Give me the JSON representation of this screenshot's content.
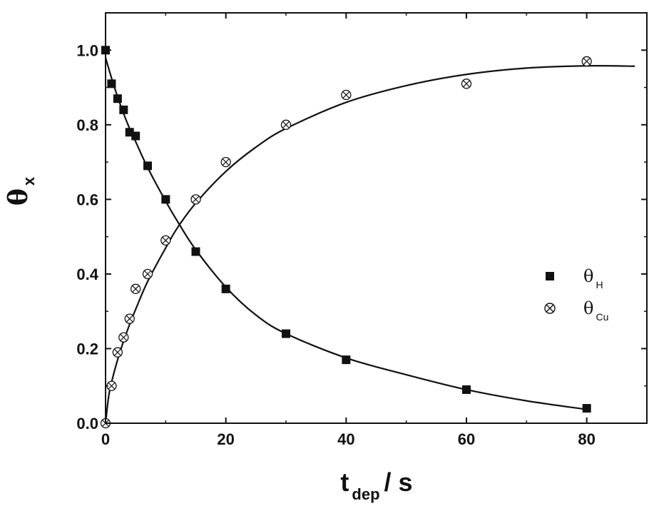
{
  "chart_data": {
    "type": "scatter",
    "xlabel": "t",
    "xlabel_sub": "dep",
    "xlabel_unit": "/ s",
    "ylabel": "θ",
    "ylabel_sub": "x",
    "xlim": [
      0,
      90
    ],
    "ylim": [
      0,
      1.1
    ],
    "xticks": [
      0,
      20,
      40,
      60,
      80
    ],
    "xtick_labels": [
      "0",
      "20",
      "40",
      "60",
      "80"
    ],
    "yticks": [
      0.0,
      0.2,
      0.4,
      0.6,
      0.8,
      1.0
    ],
    "ytick_labels": [
      "0.0",
      "0.2",
      "0.4",
      "0.6",
      "0.8",
      "1.0"
    ],
    "grid": false,
    "legend_position": "right-middle",
    "series": [
      {
        "name": "θ",
        "name_sub": "H",
        "marker": "filled-square",
        "color": "#111111",
        "x": [
          0,
          1,
          2,
          3,
          4,
          5,
          7,
          10,
          15,
          20,
          30,
          40,
          60,
          80
        ],
        "y": [
          1.0,
          0.91,
          0.87,
          0.84,
          0.78,
          0.77,
          0.69,
          0.6,
          0.46,
          0.36,
          0.24,
          0.17,
          0.09,
          0.04
        ],
        "fit_x": [
          0,
          1,
          2,
          3,
          4,
          5,
          7,
          10,
          12,
          15,
          20,
          25,
          30,
          40,
          50,
          60,
          70,
          80
        ],
        "fit_y": [
          0.98,
          0.925,
          0.875,
          0.83,
          0.79,
          0.755,
          0.685,
          0.595,
          0.54,
          0.465,
          0.365,
          0.29,
          0.24,
          0.175,
          0.13,
          0.09,
          0.06,
          0.037
        ]
      },
      {
        "name": "θ",
        "name_sub": "Cu",
        "marker": "crossed-circle",
        "color": "#111111",
        "x": [
          0,
          1,
          2,
          3,
          4,
          5,
          7,
          10,
          15,
          20,
          30,
          40,
          60,
          80
        ],
        "y": [
          0.0,
          0.1,
          0.19,
          0.23,
          0.28,
          0.36,
          0.4,
          0.49,
          0.6,
          0.7,
          0.8,
          0.88,
          0.91,
          0.97
        ],
        "fit_x": [
          0,
          0.5,
          1,
          2,
          3,
          4,
          5,
          7,
          10,
          12,
          15,
          20,
          25,
          30,
          40,
          50,
          60,
          70,
          80,
          88
        ],
        "fit_y": [
          0.0,
          0.07,
          0.11,
          0.17,
          0.22,
          0.265,
          0.305,
          0.38,
          0.47,
          0.525,
          0.59,
          0.675,
          0.74,
          0.79,
          0.86,
          0.905,
          0.935,
          0.952,
          0.958,
          0.957
        ]
      }
    ]
  }
}
